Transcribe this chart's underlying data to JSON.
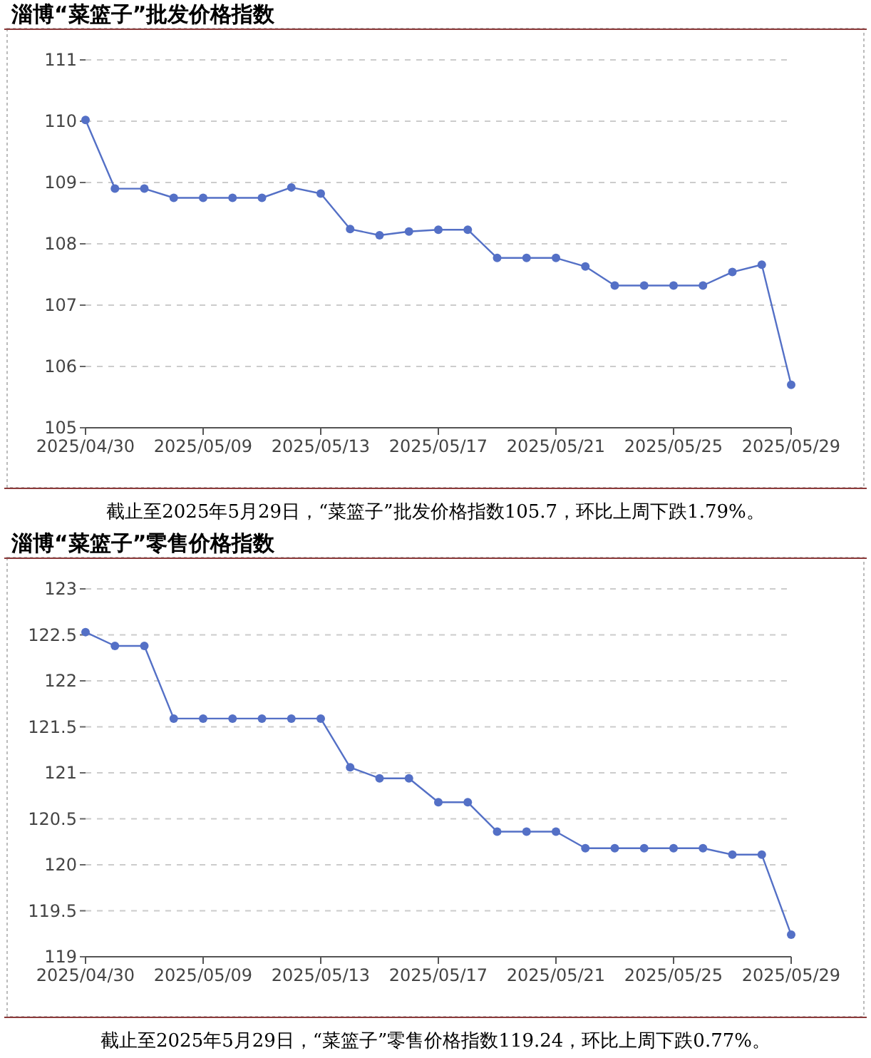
{
  "chart_data": [
    {
      "type": "line",
      "title": "淄博“菜篮子”批发价格指数",
      "categories": [
        "2025/04/30",
        null,
        null,
        null,
        "2025/05/09",
        null,
        null,
        null,
        "2025/05/13",
        null,
        null,
        null,
        "2025/05/17",
        null,
        null,
        null,
        "2025/05/21",
        null,
        null,
        null,
        "2025/05/25",
        null,
        null,
        null,
        "2025/05/29"
      ],
      "series": [
        {
          "color": "#5470c6",
          "values": [
            110.02,
            108.9,
            108.9,
            108.75,
            108.75,
            108.75,
            108.75,
            108.92,
            108.82,
            108.24,
            108.14,
            108.2,
            108.23,
            108.23,
            107.77,
            107.77,
            107.77,
            107.63,
            107.32,
            107.32,
            107.32,
            107.32,
            107.54,
            107.66,
            105.7
          ]
        }
      ],
      "ylim": [
        105,
        111
      ],
      "yticks": [
        105,
        106,
        107,
        108,
        109,
        110,
        111
      ],
      "grid": "y",
      "marker": "circle",
      "annotations": [
        "截止至2025年5月29日，“菜篮子”批发价格指数105.7，环比上周下跌1.79%。"
      ]
    },
    {
      "type": "line",
      "title": "淄博“菜篮子”零售价格指数",
      "categories": [
        "2025/04/30",
        null,
        null,
        null,
        "2025/05/09",
        null,
        null,
        null,
        "2025/05/13",
        null,
        null,
        null,
        "2025/05/17",
        null,
        null,
        null,
        "2025/05/21",
        null,
        null,
        null,
        "2025/05/25",
        null,
        null,
        null,
        "2025/05/29"
      ],
      "series": [
        {
          "color": "#5470c6",
          "values": [
            122.53,
            122.38,
            122.38,
            121.59,
            121.59,
            121.59,
            121.59,
            121.59,
            121.59,
            121.06,
            120.94,
            120.94,
            120.68,
            120.68,
            120.36,
            120.36,
            120.36,
            120.18,
            120.18,
            120.18,
            120.18,
            120.18,
            120.11,
            120.11,
            119.24
          ]
        }
      ],
      "ylim": [
        119,
        123
      ],
      "yticks": [
        119,
        119.5,
        120,
        120.5,
        121,
        121.5,
        122,
        122.5,
        123
      ],
      "grid": "y",
      "marker": "circle",
      "annotations": [
        "截止至2025年5月29日，“菜篮子”零售价格指数119.24，环比上周下跌0.77%。"
      ]
    }
  ]
}
